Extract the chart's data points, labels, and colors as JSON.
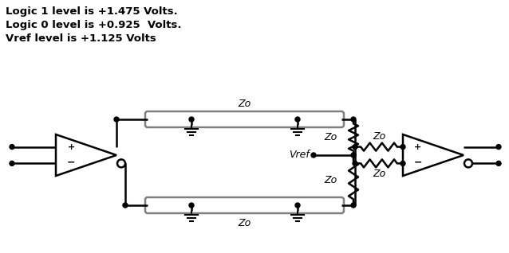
{
  "bg_color": "#ffffff",
  "text_color": "#000000",
  "line_color": "#000000",
  "gray_color": "#808080",
  "text_lines": [
    "Logic 1 level is +1.475 Volts.",
    "Logic 0 level is +0.925  Volts.",
    "Vref level is +1.125 Volts"
  ],
  "text_fontsize": 9.5,
  "zo_label": "Zo",
  "vref_label": "Vref"
}
